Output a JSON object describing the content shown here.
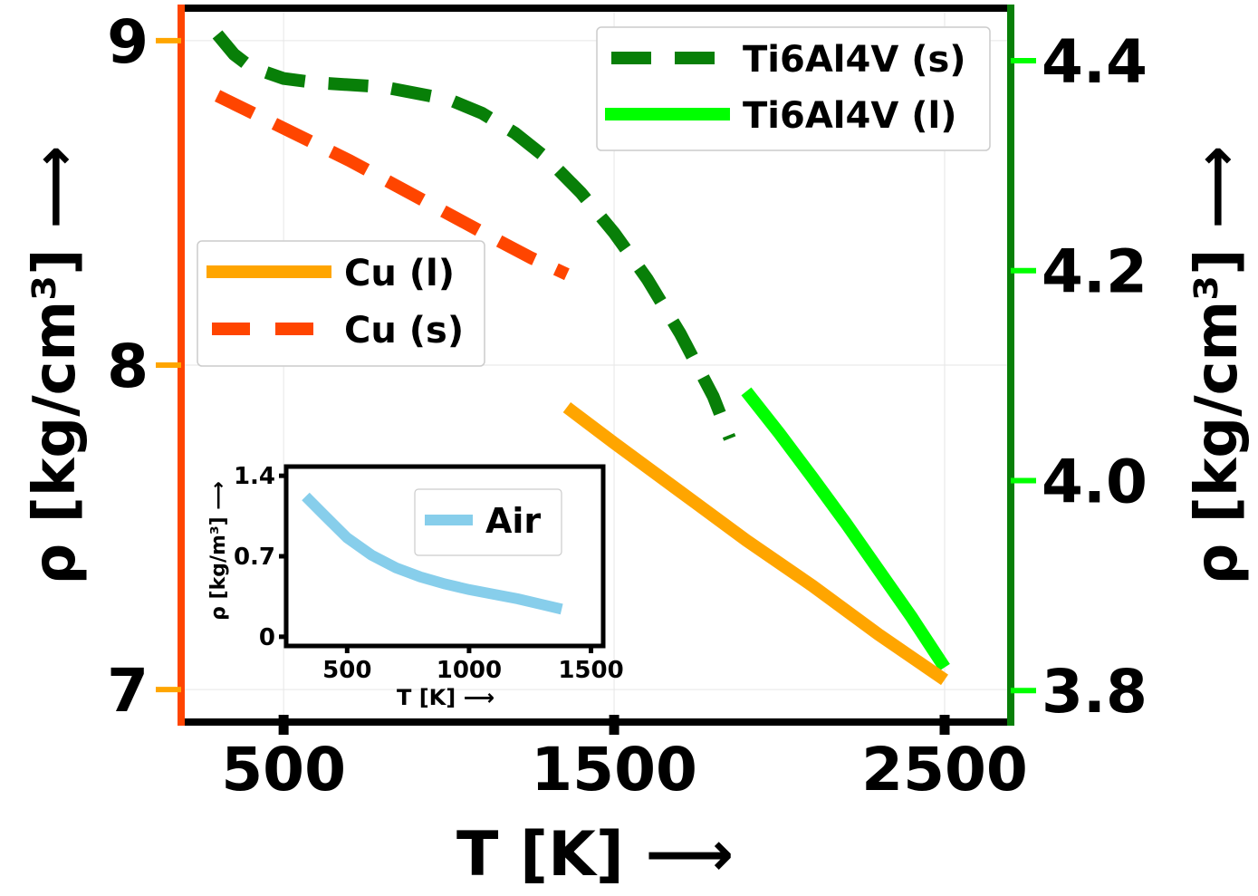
{
  "chart_data": [
    {
      "type": "line",
      "xlabel": "T [K] ⟶",
      "ylabel_left": "ρ [kg/cm³] ⟶",
      "ylabel_right": "ρ [kg/cm³] ⟶",
      "xlim": [
        190,
        2700
      ],
      "ylim_left": [
        6.9,
        9.1
      ],
      "ylim_right": [
        3.77,
        4.45
      ],
      "x_ticks": [
        {
          "v": 500,
          "label": "500"
        },
        {
          "v": 1500,
          "label": "1500"
        },
        {
          "v": 2500,
          "label": "2500"
        }
      ],
      "y_ticks_left": [
        {
          "v": 7,
          "label": "7"
        },
        {
          "v": 8,
          "label": "8"
        },
        {
          "v": 9,
          "label": "9"
        }
      ],
      "y_ticks_right": [
        {
          "v": 3.8,
          "label": "3.8"
        },
        {
          "v": 4.0,
          "label": "4.0"
        },
        {
          "v": 4.2,
          "label": "4.2"
        },
        {
          "v": 4.4,
          "label": "4.4"
        }
      ],
      "grid": true,
      "series": [
        {
          "name": "Ti6Al4V (s)",
          "axis": "right",
          "style": "dashed",
          "color": "#087f08",
          "x": [
            300,
            350,
            400,
            500,
            600,
            800,
            1000,
            1100,
            1200,
            1300,
            1400,
            1500,
            1600,
            1700,
            1800,
            1850
          ],
          "y": [
            4.425,
            4.406,
            4.394,
            4.383,
            4.379,
            4.375,
            4.363,
            4.35,
            4.331,
            4.306,
            4.274,
            4.236,
            4.192,
            4.14,
            4.08,
            4.04
          ]
        },
        {
          "name": "Ti6Al4V (l)",
          "axis": "right",
          "style": "solid",
          "color": "#00ff00",
          "x": [
            1900,
            2000,
            2100,
            2200,
            2300,
            2400,
            2500
          ],
          "y": [
            4.085,
            4.045,
            4.003,
            3.96,
            3.915,
            3.87,
            3.822
          ]
        },
        {
          "name": "Cu (l)",
          "axis": "left",
          "style": "solid",
          "color": "#ffa500",
          "x": [
            1357,
            1500,
            1700,
            1900,
            2100,
            2300,
            2500
          ],
          "y": [
            7.87,
            7.76,
            7.61,
            7.46,
            7.32,
            7.17,
            7.03
          ]
        },
        {
          "name": "Cu (s)",
          "axis": "left",
          "style": "dashed",
          "color": "#ff4500",
          "x": [
            300,
            500,
            700,
            900,
            1100,
            1250,
            1357
          ],
          "y": [
            8.83,
            8.73,
            8.63,
            8.52,
            8.41,
            8.33,
            8.28
          ]
        }
      ],
      "legend_upper": {
        "placement": "top-right",
        "entries": [
          "Ti6Al4V (s)",
          "Ti6Al4V (l)"
        ]
      },
      "legend_lower": {
        "placement": "center-left",
        "entries": [
          "Cu (l)",
          "Cu (s)"
        ]
      }
    },
    {
      "type": "line",
      "inset": true,
      "xlabel": "T [K] ⟶",
      "ylabel": "ρ [kg/m³] ⟶",
      "xlim": [
        250,
        1550
      ],
      "ylim": [
        -0.08,
        1.48
      ],
      "x_ticks": [
        {
          "v": 500,
          "label": "500"
        },
        {
          "v": 1000,
          "label": "1000"
        },
        {
          "v": 1500,
          "label": "1500"
        }
      ],
      "y_ticks": [
        {
          "v": 0,
          "label": "0"
        },
        {
          "v": 0.7,
          "label": "0.7"
        },
        {
          "v": 1.4,
          "label": "1.4"
        }
      ],
      "series": [
        {
          "name": "Air",
          "style": "solid",
          "color": "#87ceeb",
          "x": [
            330,
            400,
            500,
            600,
            700,
            800,
            900,
            1000,
            1100,
            1200,
            1300,
            1380
          ],
          "y": [
            1.22,
            1.07,
            0.86,
            0.71,
            0.6,
            0.52,
            0.46,
            0.41,
            0.37,
            0.33,
            0.28,
            0.24
          ]
        }
      ],
      "legend": {
        "placement": "top-right",
        "entries": [
          "Air"
        ]
      }
    }
  ]
}
